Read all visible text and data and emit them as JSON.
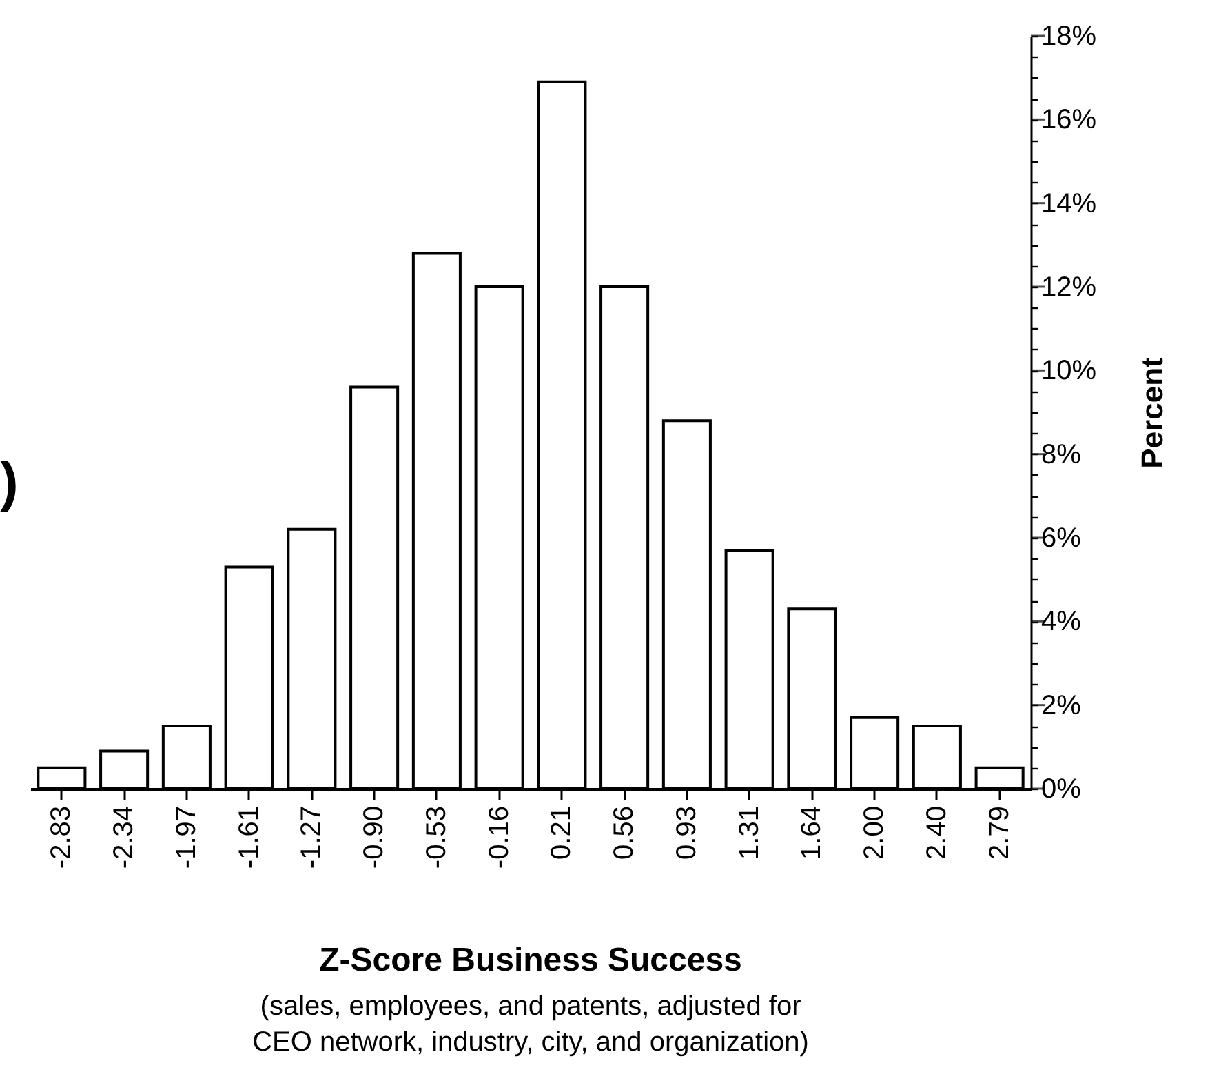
{
  "chart_data": {
    "type": "bar",
    "xlabel": "Z-Score Business Success",
    "ylabel": "Percent",
    "annotations": [
      ")",
      "(sales, employees, and patents, adjusted for",
      "CEO network, industry, city, and organization)"
    ],
    "categories": [
      "-2.83",
      "-2.34",
      "-1.97",
      "-1.61",
      "-1.27",
      "-0.90",
      "-0.53",
      "-0.16",
      "0.21",
      "0.56",
      "0.93",
      "1.31",
      "1.64",
      "2.00",
      "2.40",
      "2.79"
    ],
    "values": [
      0.5,
      0.9,
      1.5,
      5.3,
      6.2,
      9.6,
      12.8,
      12.0,
      16.9,
      12.0,
      8.8,
      5.7,
      4.3,
      1.7,
      1.5,
      0.5
    ],
    "color": "#ffffff",
    "ylim": [
      0,
      18
    ],
    "yticks": [
      {
        "value": 0,
        "label": "0%"
      },
      {
        "value": 0.5,
        "label": null
      },
      {
        "value": 1,
        "label": null
      },
      {
        "value": 1.5,
        "label": null
      },
      {
        "value": 2,
        "label": "2%"
      },
      {
        "value": 2.5,
        "label": null
      },
      {
        "value": 3,
        "label": null
      },
      {
        "value": 3.5,
        "label": null
      },
      {
        "value": 4,
        "label": "4%"
      },
      {
        "value": 4.5,
        "label": null
      },
      {
        "value": 5,
        "label": null
      },
      {
        "value": 5.5,
        "label": null
      },
      {
        "value": 6,
        "label": "6%"
      },
      {
        "value": 6.5,
        "label": null
      },
      {
        "value": 7,
        "label": null
      },
      {
        "value": 7.5,
        "label": null
      },
      {
        "value": 8,
        "label": "8%"
      },
      {
        "value": 8.5,
        "label": null
      },
      {
        "value": 9,
        "label": null
      },
      {
        "value": 9.5,
        "label": null
      },
      {
        "value": 10,
        "label": "10%"
      },
      {
        "value": 10.5,
        "label": null
      },
      {
        "value": 11,
        "label": null
      },
      {
        "value": 11.5,
        "label": null
      },
      {
        "value": 12,
        "label": "12%"
      },
      {
        "value": 12.5,
        "label": null
      },
      {
        "value": 13,
        "label": null
      },
      {
        "value": 13.5,
        "label": null
      },
      {
        "value": 14,
        "label": "14%"
      },
      {
        "value": 14.5,
        "label": null
      },
      {
        "value": 15,
        "label": null
      },
      {
        "value": 15.5,
        "label": null
      },
      {
        "value": 16,
        "label": "16%"
      },
      {
        "value": 16.5,
        "label": null
      },
      {
        "value": 17,
        "label": null
      },
      {
        "value": 17.5,
        "label": null
      },
      {
        "value": 18,
        "label": "18%"
      }
    ],
    "grid": false
  }
}
